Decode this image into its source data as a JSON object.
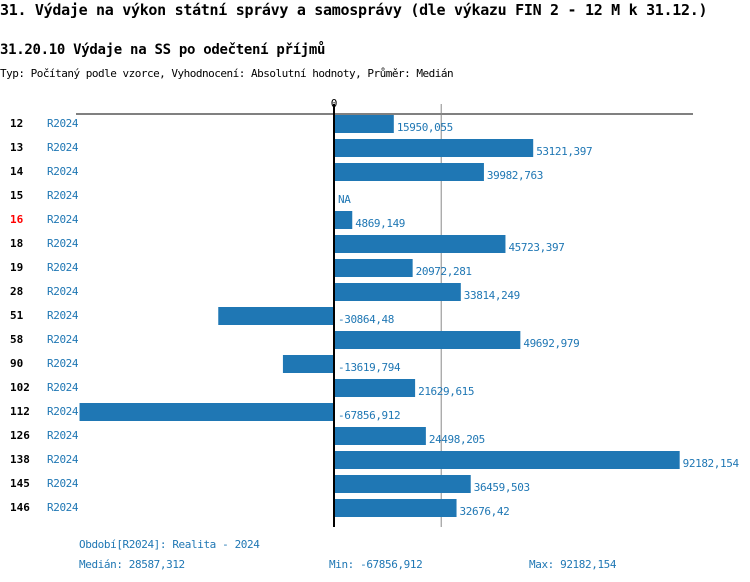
{
  "title": "31. Výdaje na výkon státní správy a samosprávy (dle výkazu FIN 2 - 12 M k 31.12.)",
  "subtitle": "31.20.10 Výdaje na SS po odečtení příjmů",
  "description": "Typ: Počítaný podle vzorce, Vyhodnocení: Absolutní hodnoty, Průměr: Medián",
  "chart_data": {
    "type": "bar",
    "orientation": "horizontal",
    "zero_label": "0",
    "categories": [
      "12",
      "13",
      "14",
      "15",
      "16",
      "18",
      "19",
      "28",
      "51",
      "58",
      "90",
      "102",
      "112",
      "126",
      "138",
      "145",
      "146"
    ],
    "highlighted": [
      "16"
    ],
    "period": "R2024",
    "values": [
      15950.055,
      53121.397,
      39982.763,
      null,
      4869.149,
      45723.397,
      20972.281,
      33814.249,
      -30864.48,
      49692.979,
      -13619.794,
      21629.615,
      -67856.912,
      24498.205,
      92182.154,
      36459.503,
      32676.42
    ],
    "value_labels": [
      "15950,055",
      "53121,397",
      "39982,763",
      "NA",
      "4869,149",
      "45723,397",
      "20972,281",
      "33814,249",
      "-30864,48",
      "49692,979",
      "-13619,794",
      "21629,615",
      "-67856,912",
      "24498,205",
      "92182,154",
      "36459,503",
      "32676,42"
    ],
    "median": 28587.312,
    "colors": {
      "bar": "#1f77b4",
      "highlight": "#ff0000",
      "label": "#1f77b4"
    }
  },
  "footer": {
    "period": "Období[R2024]: Realita - 2024",
    "median": "Medián: 28587,312",
    "min": "Min: -67856,912",
    "max": "Max: 92182,154"
  }
}
